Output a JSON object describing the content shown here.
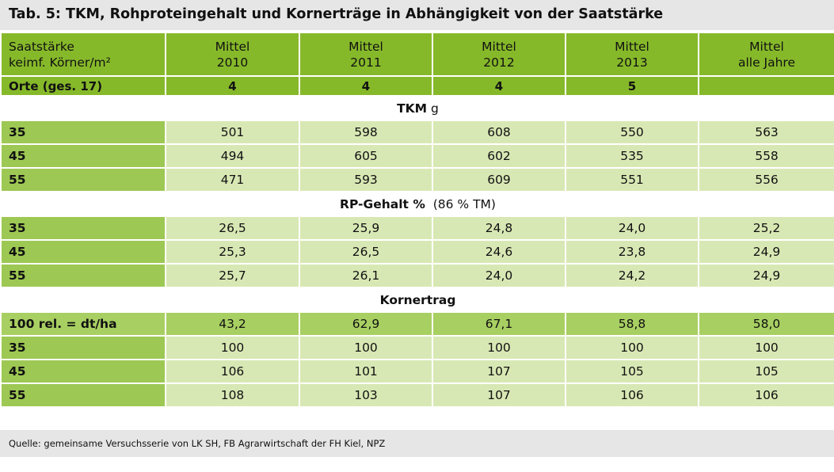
{
  "title": "Tab. 5: TKM, Rohproteingehalt und Kornerträge in Abhängigkeit von der Saatstärke",
  "header": {
    "label_line1": "Saatstärke",
    "label_line2": "keimf. Körner/m²",
    "columns": [
      {
        "line1": "Mittel",
        "line2": "2010"
      },
      {
        "line1": "Mittel",
        "line2": "2011"
      },
      {
        "line1": "Mittel",
        "line2": "2012"
      },
      {
        "line1": "Mittel",
        "line2": "2013"
      },
      {
        "line1": "Mittel",
        "line2": "alle Jahre"
      }
    ]
  },
  "orte": {
    "label": "Orte (ges. 17)",
    "values": [
      "4",
      "4",
      "4",
      "5",
      ""
    ]
  },
  "sections": {
    "tkm": {
      "title_bold": "TKM",
      "title_rest": " g",
      "rows": [
        {
          "label": "35",
          "values": [
            "501",
            "598",
            "608",
            "550",
            "563"
          ]
        },
        {
          "label": "45",
          "values": [
            "494",
            "605",
            "602",
            "535",
            "558"
          ]
        },
        {
          "label": "55",
          "values": [
            "471",
            "593",
            "609",
            "551",
            "556"
          ]
        }
      ]
    },
    "rp": {
      "title_bold": "RP-Gehalt %",
      "title_rest": "  (86 % TM)",
      "rows": [
        {
          "label": "35",
          "values": [
            "26,5",
            "25,9",
            "24,8",
            "24,0",
            "25,2"
          ]
        },
        {
          "label": "45",
          "values": [
            "25,3",
            "26,5",
            "24,6",
            "23,8",
            "24,9"
          ]
        },
        {
          "label": "55",
          "values": [
            "25,7",
            "26,1",
            "24,0",
            "24,2",
            "24,9"
          ]
        }
      ]
    },
    "kornertrag": {
      "title_bold": "Kornertrag",
      "title_rest": "",
      "reference": {
        "label": "100 rel. = dt/ha",
        "values": [
          "43,2",
          "62,9",
          "67,1",
          "58,8",
          "58,0"
        ]
      },
      "rows": [
        {
          "label": "35",
          "values": [
            "100",
            "100",
            "100",
            "100",
            "100"
          ]
        },
        {
          "label": "45",
          "values": [
            "106",
            "101",
            "107",
            "105",
            "105"
          ]
        },
        {
          "label": "55",
          "values": [
            "108",
            "103",
            "107",
            "106",
            "106"
          ]
        }
      ]
    }
  },
  "source": "Quelle: gemeinsame Versuchsserie von LK SH, FB Agrarwirtschaft der FH Kiel, NPZ",
  "colors": {
    "header_green": "#86b92a",
    "label_green": "#9dc853",
    "cell_light": "#d8e8b4",
    "title_gray": "#e6e6e6"
  }
}
